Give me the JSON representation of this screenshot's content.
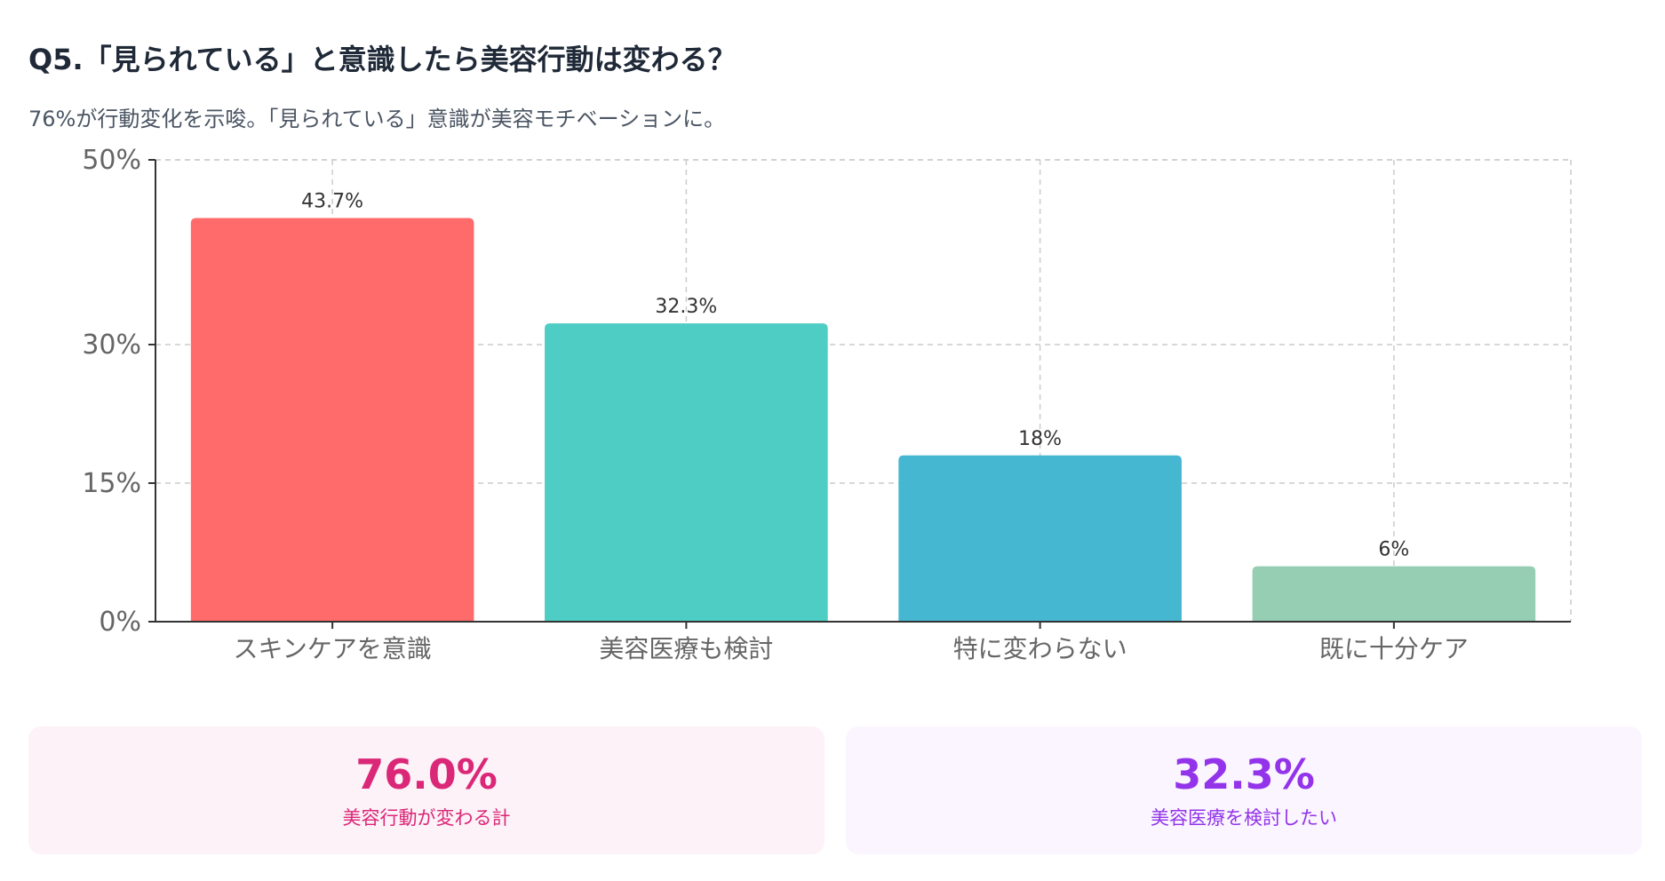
{
  "header": {
    "title": "Q5.「見られている」と意識したら美容行動は変わる？",
    "subtitle": "76%が行動変化を示唆。「見られている」意識が美容モチベーションに。"
  },
  "chart_data": {
    "type": "bar",
    "categories": [
      "スキンケアを意識",
      "美容医療も検討",
      "特に変わらない",
      "既に十分ケア"
    ],
    "values": [
      43.7,
      32.3,
      18,
      6
    ],
    "value_labels": [
      "43.7%",
      "32.3%",
      "18%",
      "6%"
    ],
    "bar_colors": [
      "#FF6B6B",
      "#4ECDC4",
      "#45B7D1",
      "#96CEB4"
    ],
    "y_ticks": [
      0,
      15,
      30,
      50
    ],
    "y_tick_labels": [
      "0%",
      "15%",
      "30%",
      "50%"
    ],
    "ylim": [
      0,
      50
    ],
    "grid": true,
    "xlabel": "",
    "ylabel": ""
  },
  "stats": [
    {
      "value": "76.0%",
      "label": "美容行動が変わる計",
      "color": "#DB2777",
      "background": "#FDF2F8"
    },
    {
      "value": "32.3%",
      "label": "美容医療を検討したい",
      "color": "#9333EA",
      "background": "#FAF5FF"
    }
  ],
  "colors": {
    "axis": "#333333",
    "grid": "#cccccc",
    "tick_text": "#666666",
    "label_text": "#333333"
  }
}
